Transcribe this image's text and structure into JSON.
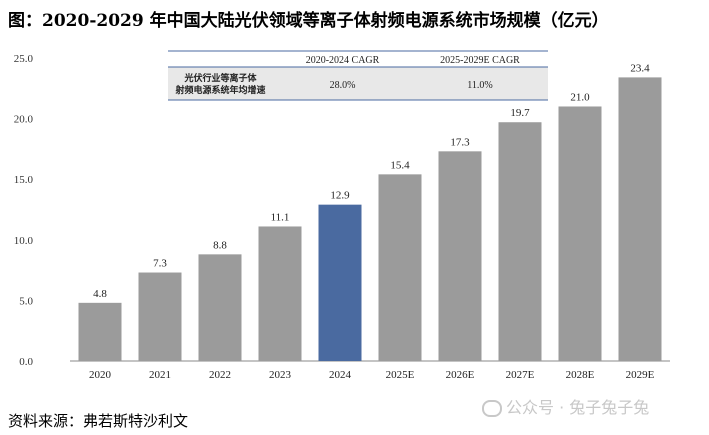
{
  "title": "图：2020-2029 年中国大陆光伏领域等离子体射频电源系统市场规模（亿元）",
  "source": "资料来源：弗若斯特沙利文",
  "watermark": "公众号 · 兔子兔子兔",
  "chart_data": {
    "type": "bar",
    "categories": [
      "2020",
      "2021",
      "2022",
      "2023",
      "2024",
      "2025E",
      "2026E",
      "2027E",
      "2028E",
      "2029E"
    ],
    "values": [
      4.8,
      7.3,
      8.8,
      11.1,
      12.9,
      15.4,
      17.3,
      19.7,
      21.0,
      23.4
    ],
    "value_labels": [
      "4.8",
      "7.3",
      "8.8",
      "11.1",
      "12.9",
      "15.4",
      "17.3",
      "19.7",
      "21.0",
      "23.4"
    ],
    "highlight_index": 4,
    "colors": {
      "default": "#9b9b9b",
      "highlight": "#4a6aa0"
    },
    "ylim": [
      0,
      25
    ],
    "yticks": [
      0,
      5,
      10,
      15,
      20,
      25
    ],
    "ytick_labels": [
      "0.0",
      "5.0",
      "10.0",
      "15.0",
      "20.0",
      "25.0"
    ],
    "grid": false
  },
  "cagr_table": {
    "headers": [
      "",
      "2020-2024 CAGR",
      "2025-2029E CAGR"
    ],
    "row_label_lines": [
      "光伏行业等离子体",
      "射频电源系统年均增速"
    ],
    "values": [
      "28.0%",
      "11.0%"
    ]
  }
}
